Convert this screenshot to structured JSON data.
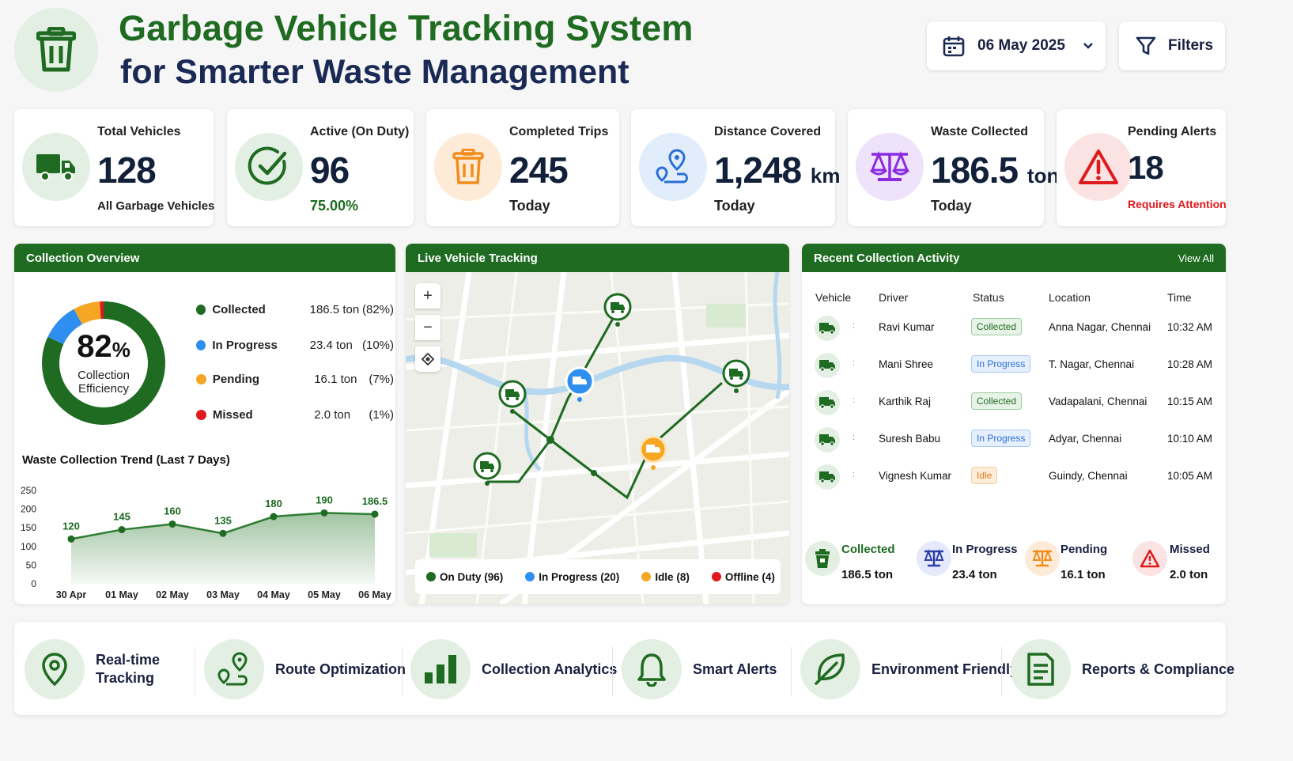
{
  "header": {
    "title_line1": "Garbage Vehicle Tracking System",
    "title_line2": "for Smarter Waste Management",
    "date": "06 May 2025",
    "filters": "Filters"
  },
  "kpis": [
    {
      "label": "Total Vehicles",
      "value": "128",
      "unit": "",
      "sub": "All Garbage Vehicles",
      "icon": "truck-icon",
      "color": "#1e6b21"
    },
    {
      "label": "Active (On Duty)",
      "value": "96",
      "unit": "",
      "sub": "75.00%",
      "icon": "check-circle-icon",
      "color": "#1e6b21"
    },
    {
      "label": "Completed Trips",
      "value": "245",
      "unit": "",
      "sub": "Today",
      "icon": "trash-icon",
      "color": "#f28c1c"
    },
    {
      "label": "Distance Covered",
      "value": "1,248",
      "unit": "km",
      "sub": "Today",
      "icon": "route-icon",
      "color": "#2a6fd6"
    },
    {
      "label": "Waste Collected",
      "value": "186.5",
      "unit": "ton",
      "sub": "Today",
      "icon": "scale-icon",
      "color": "#8a2be2"
    },
    {
      "label": "Pending Alerts",
      "value": "18",
      "unit": "",
      "sub": "Requires Attention",
      "icon": "warning-icon",
      "color": "#e0191c"
    }
  ],
  "overview": {
    "title": "Collection Overview",
    "center_value": "82",
    "center_unit": "%",
    "center_label1": "Collection",
    "center_label2": "Efficiency",
    "legend": [
      {
        "name": "Collected",
        "value": "186.5 ton",
        "pct": "(82%)",
        "color": "#1e6b21",
        "share": 82
      },
      {
        "name": "In Progress",
        "value": "23.4 ton",
        "pct": "(10%)",
        "color": "#2f8ff0",
        "share": 10
      },
      {
        "name": "Pending",
        "value": "16.1 ton",
        "pct": "(7%)",
        "color": "#f5a623",
        "share": 7
      },
      {
        "name": "Missed",
        "value": "2.0 ton",
        "pct": "(1%)",
        "color": "#e0191c",
        "share": 1
      }
    ]
  },
  "chart_data": {
    "type": "area",
    "title": "Waste Collection Trend (Last 7 Days)",
    "categories": [
      "30 Apr",
      "01 May",
      "02 May",
      "03 May",
      "04 May",
      "05 May",
      "06 May"
    ],
    "values": [
      120,
      145,
      160,
      135,
      180,
      190,
      186.5
    ],
    "value_labels": [
      "120",
      "145",
      "160",
      "135",
      "180",
      "190",
      "186.5"
    ],
    "ylim": [
      0,
      250
    ],
    "yticks": [
      "250",
      "200",
      "150",
      "100",
      "50",
      "0"
    ],
    "color": "#2e7d32"
  },
  "map": {
    "title": "Live Vehicle Tracking",
    "zoom_in": "+",
    "zoom_out": "−",
    "legend": [
      {
        "label": "On Duty (96)",
        "color": "#1e6b21"
      },
      {
        "label": "In Progress (20)",
        "color": "#2f8ff0"
      },
      {
        "label": "Idle (8)",
        "color": "#f5a623"
      },
      {
        "label": "Offline (4)",
        "color": "#e0191c"
      }
    ]
  },
  "activity": {
    "title": "Recent Collection Activity",
    "view_all": "View All",
    "columns": [
      "Vehicle",
      "Driver",
      "Status",
      "Location",
      "Time"
    ],
    "rows": [
      {
        "driver": "Ravi Kumar",
        "status": "Collected",
        "location": "Anna Nagar, Chennai",
        "time": "10:32 AM"
      },
      {
        "driver": "Mani Shree",
        "status": "In Progress",
        "location": "T. Nagar, Chennai",
        "time": "10:28 AM"
      },
      {
        "driver": "Karthik Raj",
        "status": "Collected",
        "location": "Vadapalani, Chennai",
        "time": "10:15 AM"
      },
      {
        "driver": "Suresh Babu",
        "status": "In Progress",
        "location": "Adyar, Chennai",
        "time": "10:10 AM"
      },
      {
        "driver": "Vignesh Kumar",
        "status": "Idle",
        "location": "Guindy, Chennai",
        "time": "10:05 AM"
      }
    ],
    "summary": [
      {
        "label": "Collected",
        "value": "186.5 ton",
        "color": "#1e6b21"
      },
      {
        "label": "In Progress",
        "value": "23.4 ton",
        "color": "#2a3fa8"
      },
      {
        "label": "Pending",
        "value": "16.1 ton",
        "color": "#f28c1c"
      },
      {
        "label": "Missed",
        "value": "2.0 ton",
        "color": "#e0191c"
      }
    ]
  },
  "features": [
    {
      "label": "Real-time Tracking",
      "icon": "location-pin-icon"
    },
    {
      "label": "Route Optimization",
      "icon": "route-icon"
    },
    {
      "label": "Collection Analytics",
      "icon": "bar-chart-icon"
    },
    {
      "label": "Smart Alerts",
      "icon": "bell-icon"
    },
    {
      "label": "Environment Friendly",
      "icon": "leaf-icon"
    },
    {
      "label": "Reports & Compliance",
      "icon": "document-icon"
    }
  ]
}
